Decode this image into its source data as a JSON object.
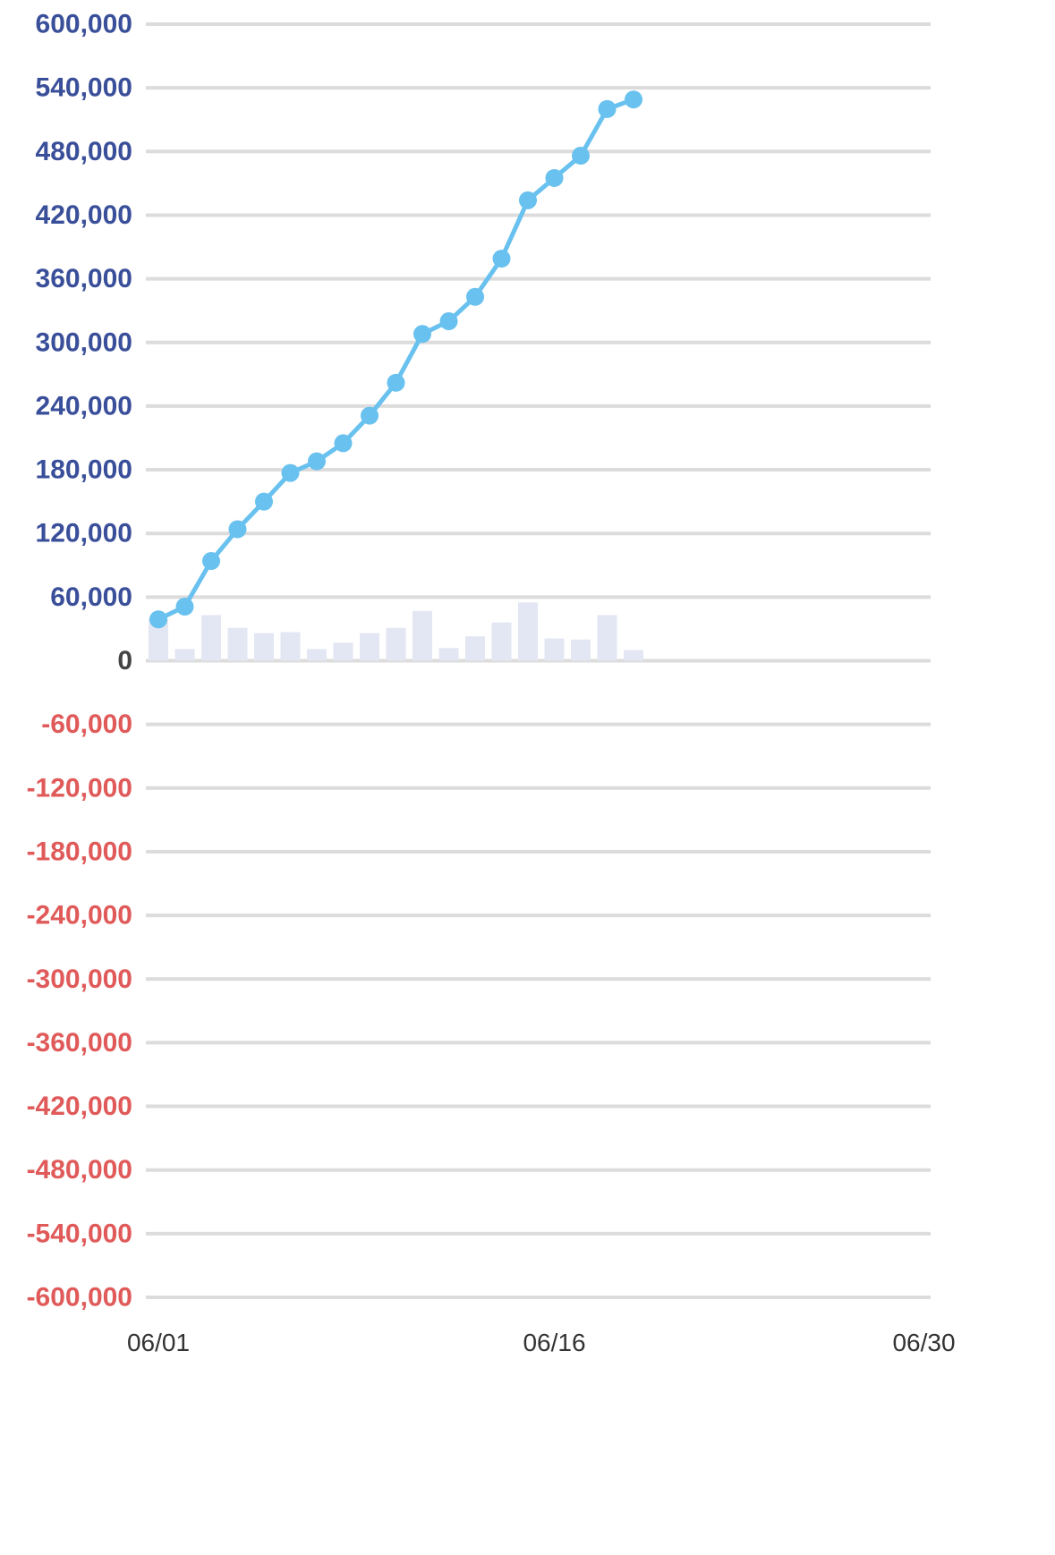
{
  "chart_data": {
    "type": "line",
    "title": "",
    "xlabel": "",
    "ylabel": "",
    "x_start_date": "06/01",
    "x_tick_labels": [
      "06/01",
      "06/16",
      "06/30"
    ],
    "ylim": [
      -600000,
      600000
    ],
    "y_tick_values": [
      600000,
      540000,
      480000,
      420000,
      360000,
      300000,
      240000,
      180000,
      120000,
      60000,
      0,
      -60000,
      -120000,
      -180000,
      -240000,
      -300000,
      -360000,
      -420000,
      -480000,
      -540000,
      -600000
    ],
    "y_tick_labels": [
      "600,000",
      "540,000",
      "480,000",
      "420,000",
      "360,000",
      "300,000",
      "240,000",
      "180,000",
      "120,000",
      "60,000",
      "0",
      "-60,000",
      "-120,000",
      "-180,000",
      "-240,000",
      "-300,000",
      "-360,000",
      "-420,000",
      "-480,000",
      "-540,000",
      "-600,000"
    ],
    "grid": true,
    "colors": {
      "line": "#68C1EE",
      "bar": "#E3E7F3",
      "grid": "#DCDCDC",
      "positive_tick": "#3A4F9A",
      "zero_tick": "#444444",
      "negative_tick": "#E05A5A",
      "x_tick": "#333333"
    },
    "series": [
      {
        "type": "line",
        "x": [
          "06/01",
          "06/02",
          "06/03",
          "06/04",
          "06/05",
          "06/06",
          "06/07",
          "06/08",
          "06/09",
          "06/10",
          "06/11",
          "06/12",
          "06/13",
          "06/14",
          "06/15",
          "06/16",
          "06/17",
          "06/18",
          "06/19"
        ],
        "values": [
          39000,
          51000,
          94000,
          124000,
          150000,
          177000,
          188000,
          205000,
          231000,
          262000,
          308000,
          320000,
          343000,
          379000,
          434000,
          455000,
          476000,
          520000,
          529000
        ]
      },
      {
        "type": "bar",
        "x": [
          "06/01",
          "06/02",
          "06/03",
          "06/04",
          "06/05",
          "06/06",
          "06/07",
          "06/08",
          "06/09",
          "06/10",
          "06/11",
          "06/12",
          "06/13",
          "06/14",
          "06/15",
          "06/16",
          "06/17",
          "06/18",
          "06/19"
        ],
        "values": [
          39000,
          11000,
          43000,
          31000,
          26000,
          27000,
          11000,
          17000,
          26000,
          31000,
          47000,
          12000,
          23000,
          36000,
          55000,
          21000,
          20000,
          43000,
          10000
        ]
      }
    ]
  }
}
